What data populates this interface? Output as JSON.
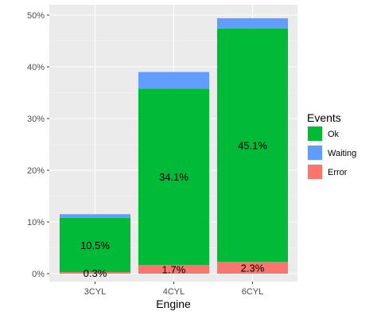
{
  "chart_data": {
    "type": "bar",
    "stacked": true,
    "categories": [
      "3CYL",
      "4CYL",
      "6CYL"
    ],
    "series": [
      {
        "name": "Error",
        "color": "#F8766D",
        "values": [
          0.3,
          1.7,
          2.3
        ],
        "labels": [
          "0.3%",
          "1.7%",
          "2.3%"
        ]
      },
      {
        "name": "Ok",
        "color": "#00BA38",
        "values": [
          10.5,
          34.1,
          45.1
        ],
        "labels": [
          "10.5%",
          "34.1%",
          "45.1%"
        ]
      },
      {
        "name": "Waiting",
        "color": "#619CFF",
        "values": [
          0.7,
          3.2,
          2.0
        ]
      }
    ],
    "xlabel": "Engine",
    "ylabel": "",
    "ylim": [
      0,
      50
    ],
    "yticks": [
      0,
      10,
      20,
      30,
      40,
      50
    ],
    "ytick_labels": [
      "0%",
      "10%",
      "20%",
      "30%",
      "40%",
      "50%"
    ],
    "grid": true,
    "legend": {
      "title": "Events",
      "placement": "right",
      "entries": [
        {
          "name": "Ok",
          "color": "#00BA38"
        },
        {
          "name": "Waiting",
          "color": "#619CFF"
        },
        {
          "name": "Error",
          "color": "#F8766D"
        }
      ]
    }
  }
}
